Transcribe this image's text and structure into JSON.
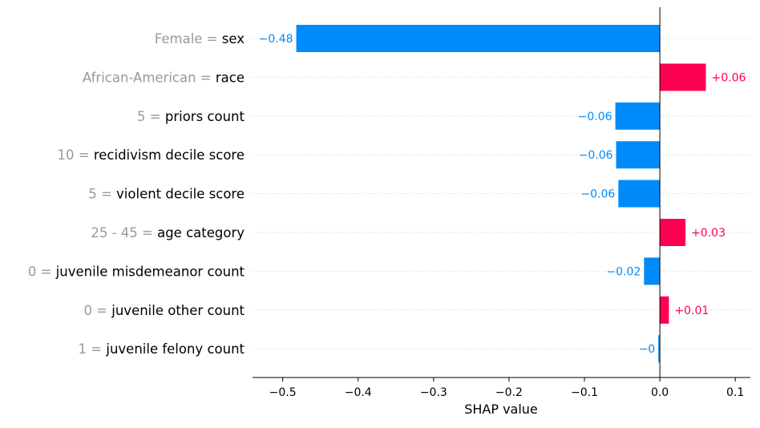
{
  "chart_data": {
    "type": "bar",
    "orientation": "horizontal",
    "xlabel": "SHAP value",
    "xlim": [
      -0.54,
      0.12
    ],
    "xticks": [
      -0.5,
      -0.4,
      -0.3,
      -0.2,
      -0.1,
      0.0,
      0.1
    ],
    "xtick_labels": [
      "−0.5",
      "−0.4",
      "−0.3",
      "−0.2",
      "−0.1",
      "0.0",
      "0.1"
    ],
    "grid": "horizontal dotted lines per row",
    "zero_line": true,
    "bars": [
      {
        "feature_value": "Female",
        "feature": "sex",
        "value": -0.482,
        "label": "−0.48"
      },
      {
        "feature_value": "African-American",
        "feature": "race",
        "value": 0.061,
        "label": "+0.06"
      },
      {
        "feature_value": "5",
        "feature": "priors count",
        "value": -0.059,
        "label": "−0.06"
      },
      {
        "feature_value": "10",
        "feature": "recidivism decile score",
        "value": -0.058,
        "label": "−0.06"
      },
      {
        "feature_value": "5",
        "feature": "violent decile score",
        "value": -0.055,
        "label": "−0.06"
      },
      {
        "feature_value": "25 - 45",
        "feature": "age category",
        "value": 0.034,
        "label": "+0.03"
      },
      {
        "feature_value": "0",
        "feature": "juvenile misdemeanor count",
        "value": -0.021,
        "label": "−0.02"
      },
      {
        "feature_value": "0",
        "feature": "juvenile other count",
        "value": 0.012,
        "label": "+0.01"
      },
      {
        "feature_value": "1",
        "feature": "juvenile felony count",
        "value": -0.002,
        "label": "−0"
      }
    ],
    "colors": {
      "negative": "#008bfb",
      "positive": "#ff0051",
      "feature_value_text": "#999999",
      "feature_text": "#000000",
      "axis": "#000000",
      "grid": "#cccccc"
    }
  }
}
